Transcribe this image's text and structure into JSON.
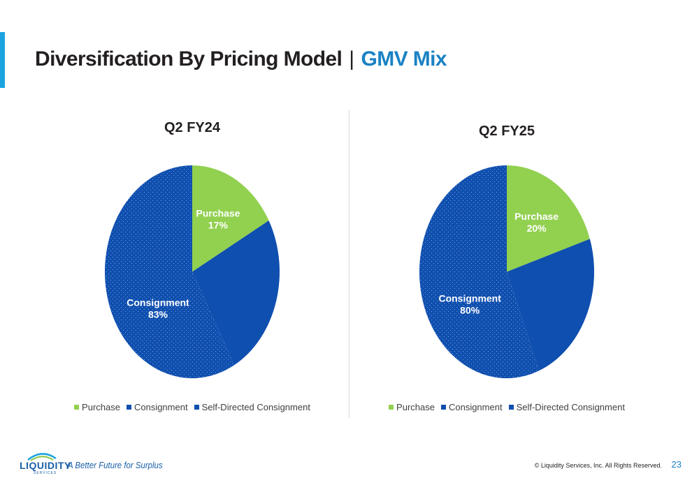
{
  "slide": {
    "title_main": "Diversification By Pricing Model",
    "title_sep": "|",
    "title_highlight": "GMV Mix"
  },
  "colors": {
    "purchase": "#92d050",
    "consignment": "#0f4faf",
    "self_directed": "#0f4faf",
    "title_accent": "#1a82c4",
    "bar_accent": "#1aa3e0"
  },
  "chart_data": [
    {
      "type": "pie",
      "title": "Q2 FY24",
      "labels": [
        "Purchase",
        "Consignment",
        "Self-Directed Consignment"
      ],
      "values": [
        17,
        25,
        58
      ],
      "slice_labels": [
        {
          "name": "Purchase",
          "value": "17%"
        },
        {
          "name": "Consignment",
          "value": "83%"
        }
      ],
      "legend": "bottom"
    },
    {
      "type": "pie",
      "title": "Q2 FY25",
      "labels": [
        "Purchase",
        "Consignment",
        "Self-Directed Consignment"
      ],
      "values": [
        20,
        24,
        56
      ],
      "slice_labels": [
        {
          "name": "Purchase",
          "value": "20%"
        },
        {
          "name": "Consignment",
          "value": "80%"
        }
      ],
      "legend": "bottom"
    }
  ],
  "legend": {
    "items": [
      "Purchase",
      "Consignment",
      "Self-Directed Consignment"
    ]
  },
  "footer": {
    "logo_text": "LIQUIDITY",
    "logo_sub": "SERVICES",
    "tagline": "A Better Future for Surplus",
    "copyright": "© Liquidity Services, Inc. All Rights Reserved.",
    "page_number": "23"
  }
}
